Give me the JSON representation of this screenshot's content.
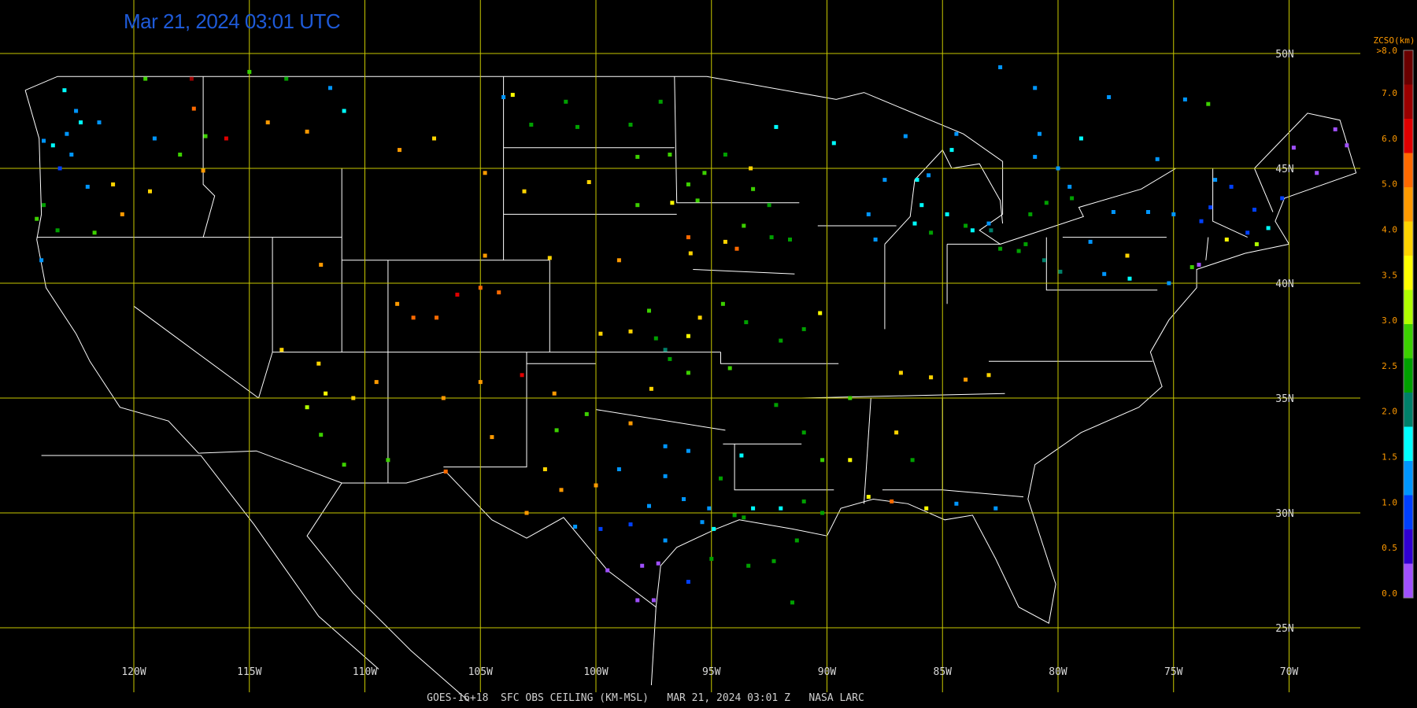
{
  "header": {
    "timestamp": "Mar 21, 2024 03:01 UTC"
  },
  "footer": {
    "caption": "GOES-16+18  SFC OBS CEILING (KM-MSL)   MAR 21, 2024 03:01 Z   NASA LARC"
  },
  "legend": {
    "title": "ZCSO(km)",
    "top_label": ">8.0",
    "ticks": [
      "7.0",
      "6.0",
      "5.0",
      "4.0",
      "3.5",
      "3.0",
      "2.5",
      "2.0",
      "1.5",
      "1.0",
      "0.5",
      "0.0"
    ],
    "colors": [
      "#6a0000",
      "#9a0000",
      "#e00000",
      "#ff6a00",
      "#ff9a00",
      "#ffd400",
      "#ffff00",
      "#b0ff00",
      "#3cd000",
      "#00a000",
      "#00806a",
      "#00ffff",
      "#0096ff",
      "#0040ff",
      "#3000d0",
      "#a050ff"
    ]
  },
  "map": {
    "lon_range": [
      -125,
      -67
    ],
    "lat_range": [
      24,
      51.5
    ],
    "meridians": [
      {
        "lon": -120,
        "label": "120W"
      },
      {
        "lon": -115,
        "label": "115W"
      },
      {
        "lon": -110,
        "label": "110W"
      },
      {
        "lon": -105,
        "label": "105W"
      },
      {
        "lon": -100,
        "label": "100W"
      },
      {
        "lon": -95,
        "label": "95W"
      },
      {
        "lon": -90,
        "label": "90W"
      },
      {
        "lon": -85,
        "label": "85W"
      },
      {
        "lon": -80,
        "label": "80W"
      },
      {
        "lon": -75,
        "label": "75W"
      },
      {
        "lon": -70,
        "label": "70W"
      }
    ],
    "parallels": [
      {
        "lat": 50,
        "label": "50N"
      },
      {
        "lat": 45,
        "label": "45N"
      },
      {
        "lat": 40,
        "label": "40N"
      },
      {
        "lat": 35,
        "label": "35N"
      },
      {
        "lat": 30,
        "label": "30N"
      },
      {
        "lat": 25,
        "label": "25N"
      }
    ],
    "grid_color": "#c8c800",
    "border_color": "#ffffff",
    "observations": [
      [
        -123.0,
        48.4,
        "#00ffff"
      ],
      [
        -122.5,
        47.5,
        "#0096ff"
      ],
      [
        -122.3,
        47.0,
        "#00ffff"
      ],
      [
        -122.9,
        46.5,
        "#0096ff"
      ],
      [
        -123.5,
        46.0,
        "#00ffff"
      ],
      [
        -123.9,
        46.2,
        "#0096ff"
      ],
      [
        -122.7,
        45.6,
        "#0096ff"
      ],
      [
        -123.2,
        45.0,
        "#0040ff"
      ],
      [
        -122.0,
        44.2,
        "#0096ff"
      ],
      [
        -123.9,
        43.4,
        "#00a000"
      ],
      [
        -124.2,
        42.8,
        "#3cd000"
      ],
      [
        -124.0,
        41.0,
        "#0096ff"
      ],
      [
        -123.3,
        42.3,
        "#00a000"
      ],
      [
        -121.7,
        42.2,
        "#3cd000"
      ],
      [
        -119.1,
        46.3,
        "#0096ff"
      ],
      [
        -117.4,
        47.6,
        "#ff6a00"
      ],
      [
        -116.9,
        46.4,
        "#3cd000"
      ],
      [
        -117.0,
        44.9,
        "#ff9a00"
      ],
      [
        -118.0,
        45.6,
        "#3cd000"
      ],
      [
        -119.3,
        44.0,
        "#ffd400"
      ],
      [
        -120.5,
        43.0,
        "#ff9a00"
      ],
      [
        -120.9,
        44.3,
        "#ffd400"
      ],
      [
        -119.5,
        48.9,
        "#3cd000"
      ],
      [
        -121.5,
        47.0,
        "#0096ff"
      ],
      [
        -114.2,
        47.0,
        "#ff9a00"
      ],
      [
        -112.5,
        46.6,
        "#ff9a00"
      ],
      [
        -108.5,
        45.8,
        "#ff9a00"
      ],
      [
        -110.9,
        47.5,
        "#00ffff"
      ],
      [
        -107.0,
        46.3,
        "#ffd400"
      ],
      [
        -111.5,
        48.5,
        "#0096ff"
      ],
      [
        -113.4,
        48.9,
        "#00a000"
      ],
      [
        -115.0,
        49.2,
        "#3cd000"
      ],
      [
        -117.5,
        48.9,
        "#9a0000"
      ],
      [
        -116.0,
        46.3,
        "#e00000"
      ],
      [
        -104.0,
        48.1,
        "#0096ff"
      ],
      [
        -101.3,
        47.9,
        "#00a000"
      ],
      [
        -100.8,
        46.8,
        "#00a000"
      ],
      [
        -98.5,
        46.9,
        "#00a000"
      ],
      [
        -97.2,
        47.9,
        "#00a000"
      ],
      [
        -102.8,
        46.9,
        "#00a000"
      ],
      [
        -103.6,
        48.2,
        "#ffff00"
      ],
      [
        -98.2,
        45.5,
        "#3cd000"
      ],
      [
        -96.8,
        45.6,
        "#3cd000"
      ],
      [
        -96.0,
        44.3,
        "#3cd000"
      ],
      [
        -95.3,
        44.8,
        "#3cd000"
      ],
      [
        -94.4,
        45.6,
        "#00a000"
      ],
      [
        -93.3,
        45.0,
        "#ffd400"
      ],
      [
        -93.2,
        44.1,
        "#3cd000"
      ],
      [
        -92.5,
        43.4,
        "#00a000"
      ],
      [
        -95.6,
        43.6,
        "#3cd000"
      ],
      [
        -96.7,
        43.5,
        "#ffff00"
      ],
      [
        -98.2,
        43.4,
        "#3cd000"
      ],
      [
        -100.3,
        44.4,
        "#ffd400"
      ],
      [
        -103.1,
        44.0,
        "#ffd400"
      ],
      [
        -104.8,
        44.8,
        "#ff9a00"
      ],
      [
        -93.6,
        42.5,
        "#3cd000"
      ],
      [
        -92.4,
        42.0,
        "#00a000"
      ],
      [
        -91.6,
        41.9,
        "#00a000"
      ],
      [
        -94.4,
        41.8,
        "#ffd400"
      ],
      [
        -95.9,
        41.3,
        "#ffd400"
      ],
      [
        -96.0,
        42.0,
        "#ff6a00"
      ],
      [
        -93.9,
        41.5,
        "#ff6a00"
      ],
      [
        -99.0,
        41.0,
        "#ff9a00"
      ],
      [
        -102.0,
        41.1,
        "#ffd400"
      ],
      [
        -104.8,
        41.2,
        "#ff9a00"
      ],
      [
        -106.0,
        39.5,
        "#e00000"
      ],
      [
        -105.0,
        39.8,
        "#ff6a00"
      ],
      [
        -104.2,
        39.6,
        "#ff6a00"
      ],
      [
        -107.9,
        38.5,
        "#ff6a00"
      ],
      [
        -106.9,
        38.5,
        "#ff6a00"
      ],
      [
        -108.6,
        39.1,
        "#ff9a00"
      ],
      [
        -111.9,
        40.8,
        "#ff9a00"
      ],
      [
        -113.6,
        37.1,
        "#ffd400"
      ],
      [
        -112.0,
        36.5,
        "#ffd400"
      ],
      [
        -109.5,
        35.7,
        "#ff9a00"
      ],
      [
        -110.5,
        35.0,
        "#ffd400"
      ],
      [
        -111.7,
        35.2,
        "#ffff00"
      ],
      [
        -112.5,
        34.6,
        "#b0ff00"
      ],
      [
        -111.9,
        33.4,
        "#3cd000"
      ],
      [
        -110.9,
        32.1,
        "#3cd000"
      ],
      [
        -109.0,
        32.3,
        "#3cd000"
      ],
      [
        -106.6,
        35.0,
        "#ff9a00"
      ],
      [
        -105.0,
        35.7,
        "#ff9a00"
      ],
      [
        -103.2,
        36.0,
        "#e00000"
      ],
      [
        -104.5,
        33.3,
        "#ff9a00"
      ],
      [
        -106.5,
        31.8,
        "#ff6a00"
      ],
      [
        -102.2,
        31.9,
        "#ffd400"
      ],
      [
        -101.7,
        33.6,
        "#3cd000"
      ],
      [
        -100.4,
        34.3,
        "#3cd000"
      ],
      [
        -101.8,
        35.2,
        "#ff9a00"
      ],
      [
        -99.8,
        37.8,
        "#ffd400"
      ],
      [
        -97.7,
        38.8,
        "#3cd000"
      ],
      [
        -98.5,
        37.9,
        "#ffd400"
      ],
      [
        -97.4,
        37.6,
        "#00a000"
      ],
      [
        -96.8,
        36.7,
        "#00a000"
      ],
      [
        -97.0,
        37.1,
        "#00806a"
      ],
      [
        -96.0,
        37.7,
        "#ffff00"
      ],
      [
        -95.5,
        38.5,
        "#ffd400"
      ],
      [
        -94.5,
        39.1,
        "#3cd000"
      ],
      [
        -93.5,
        38.3,
        "#00a000"
      ],
      [
        -91.0,
        38.0,
        "#00a000"
      ],
      [
        -90.3,
        38.7,
        "#ffff00"
      ],
      [
        -92.0,
        37.5,
        "#00a000"
      ],
      [
        -97.6,
        35.4,
        "#ffd400"
      ],
      [
        -96.0,
        36.1,
        "#3cd000"
      ],
      [
        -94.2,
        36.3,
        "#3cd000"
      ],
      [
        -92.2,
        34.7,
        "#00a000"
      ],
      [
        -91.0,
        33.5,
        "#00a000"
      ],
      [
        -89.0,
        35.0,
        "#3cd000"
      ],
      [
        -86.8,
        36.1,
        "#ffd400"
      ],
      [
        -85.5,
        35.9,
        "#ffd400"
      ],
      [
        -84.0,
        35.8,
        "#ff9a00"
      ],
      [
        -83.0,
        36.0,
        "#ffd400"
      ],
      [
        -87.0,
        33.5,
        "#ffd400"
      ],
      [
        -86.3,
        32.3,
        "#00a000"
      ],
      [
        -88.2,
        30.7,
        "#ffff00"
      ],
      [
        -87.2,
        30.5,
        "#ff6a00"
      ],
      [
        -85.7,
        30.2,
        "#ffff00"
      ],
      [
        -84.4,
        30.4,
        "#0096ff"
      ],
      [
        -82.7,
        30.2,
        "#0096ff"
      ],
      [
        -89.0,
        32.3,
        "#ffff00"
      ],
      [
        -90.2,
        32.3,
        "#3cd000"
      ],
      [
        -91.0,
        30.5,
        "#00a000"
      ],
      [
        -90.2,
        30.0,
        "#00a000"
      ],
      [
        -92.0,
        30.2,
        "#00ffff"
      ],
      [
        -93.2,
        30.2,
        "#00ffff"
      ],
      [
        -94.0,
        29.9,
        "#00a000"
      ],
      [
        -93.7,
        32.5,
        "#00ffff"
      ],
      [
        -94.6,
        31.5,
        "#00a000"
      ],
      [
        -95.4,
        29.6,
        "#0096ff"
      ],
      [
        -95.1,
        30.2,
        "#0096ff"
      ],
      [
        -96.2,
        30.6,
        "#0096ff"
      ],
      [
        -97.7,
        30.3,
        "#0096ff"
      ],
      [
        -98.5,
        29.5,
        "#0040ff"
      ],
      [
        -99.8,
        29.3,
        "#0040ff"
      ],
      [
        -97.0,
        28.8,
        "#0096ff"
      ],
      [
        -97.3,
        27.8,
        "#a050ff"
      ],
      [
        -97.5,
        26.2,
        "#a050ff"
      ],
      [
        -98.2,
        26.2,
        "#a050ff"
      ],
      [
        -99.5,
        27.5,
        "#a050ff"
      ],
      [
        -98.0,
        27.7,
        "#a050ff"
      ],
      [
        -97.0,
        31.6,
        "#0096ff"
      ],
      [
        -97.0,
        32.9,
        "#0096ff"
      ],
      [
        -96.0,
        32.7,
        "#0096ff"
      ],
      [
        -98.5,
        33.9,
        "#ff9a00"
      ],
      [
        -100.0,
        31.2,
        "#ff9a00"
      ],
      [
        -99.0,
        31.9,
        "#0096ff"
      ],
      [
        -101.5,
        31.0,
        "#ff9a00"
      ],
      [
        -103.0,
        30.0,
        "#ff9a00"
      ],
      [
        -100.9,
        29.4,
        "#0096ff"
      ],
      [
        -94.9,
        29.3,
        "#00ffff"
      ],
      [
        -93.6,
        29.8,
        "#00a000"
      ],
      [
        -91.3,
        28.8,
        "#00a000"
      ],
      [
        -92.3,
        27.9,
        "#00a000"
      ],
      [
        -93.4,
        27.7,
        "#00a000"
      ],
      [
        -95.0,
        28.0,
        "#00a000"
      ],
      [
        -96.0,
        27.0,
        "#0040ff"
      ],
      [
        -91.5,
        26.1,
        "#00a000"
      ],
      [
        -87.9,
        41.9,
        "#0096ff"
      ],
      [
        -88.2,
        43.0,
        "#0096ff"
      ],
      [
        -87.5,
        44.5,
        "#0096ff"
      ],
      [
        -86.1,
        44.5,
        "#00ffff"
      ],
      [
        -85.5,
        42.2,
        "#00a000"
      ],
      [
        -84.8,
        43.0,
        "#00ffff"
      ],
      [
        -83.7,
        42.3,
        "#00ffff"
      ],
      [
        -83.0,
        42.6,
        "#0096ff"
      ],
      [
        -84.6,
        45.8,
        "#00ffff"
      ],
      [
        -85.6,
        44.7,
        "#0096ff"
      ],
      [
        -86.6,
        46.4,
        "#0096ff"
      ],
      [
        -84.4,
        46.5,
        "#0096ff"
      ],
      [
        -89.7,
        46.1,
        "#00ffff"
      ],
      [
        -92.2,
        46.8,
        "#00ffff"
      ],
      [
        -85.9,
        43.4,
        "#00ffff"
      ],
      [
        -86.2,
        42.6,
        "#00ffff"
      ],
      [
        -82.5,
        41.5,
        "#00a000"
      ],
      [
        -81.7,
        41.4,
        "#00a000"
      ],
      [
        -80.6,
        41.0,
        "#00806a"
      ],
      [
        -81.4,
        41.7,
        "#00a000"
      ],
      [
        -79.9,
        40.5,
        "#00806a"
      ],
      [
        -78.6,
        41.8,
        "#0096ff"
      ],
      [
        -77.6,
        43.1,
        "#0096ff"
      ],
      [
        -76.1,
        43.1,
        "#0096ff"
      ],
      [
        -75.0,
        43.0,
        "#0096ff"
      ],
      [
        -73.8,
        42.7,
        "#0040ff"
      ],
      [
        -73.4,
        43.3,
        "#0040ff"
      ],
      [
        -73.2,
        44.5,
        "#0096ff"
      ],
      [
        -72.5,
        44.2,
        "#0040ff"
      ],
      [
        -71.5,
        43.2,
        "#0040ff"
      ],
      [
        -70.3,
        43.7,
        "#0040ff"
      ],
      [
        -70.9,
        42.4,
        "#00ffff"
      ],
      [
        -71.8,
        42.2,
        "#0040ff"
      ],
      [
        -71.4,
        41.7,
        "#b0ff00"
      ],
      [
        -72.7,
        41.9,
        "#ffff00"
      ],
      [
        -73.9,
        40.8,
        "#a050ff"
      ],
      [
        -74.2,
        40.7,
        "#3cd000"
      ],
      [
        -75.2,
        40.0,
        "#0096ff"
      ],
      [
        -76.9,
        40.2,
        "#00ffff"
      ],
      [
        -77.0,
        41.2,
        "#ffd400"
      ],
      [
        -78.0,
        40.4,
        "#0096ff"
      ],
      [
        -68.8,
        44.8,
        "#a050ff"
      ],
      [
        -68.0,
        46.7,
        "#a050ff"
      ],
      [
        -69.8,
        45.9,
        "#a050ff"
      ],
      [
        -67.5,
        46.0,
        "#a050ff"
      ],
      [
        -74.5,
        48.0,
        "#0096ff"
      ],
      [
        -77.8,
        48.1,
        "#0096ff"
      ],
      [
        -73.5,
        47.8,
        "#3cd000"
      ],
      [
        -75.7,
        45.4,
        "#0096ff"
      ],
      [
        -79.4,
        43.7,
        "#00a000"
      ],
      [
        -80.5,
        43.5,
        "#00a000"
      ],
      [
        -81.2,
        43.0,
        "#00a000"
      ],
      [
        -82.9,
        42.3,
        "#00806a"
      ],
      [
        -84.0,
        42.5,
        "#00a000"
      ],
      [
        -79.5,
        44.2,
        "#0096ff"
      ],
      [
        -80.0,
        45.0,
        "#0096ff"
      ],
      [
        -81.0,
        45.5,
        "#0096ff"
      ],
      [
        -79.0,
        46.3,
        "#00ffff"
      ],
      [
        -80.8,
        46.5,
        "#0096ff"
      ],
      [
        -81.0,
        48.5,
        "#0096ff"
      ],
      [
        -82.5,
        49.4,
        "#0096ff"
      ]
    ]
  }
}
